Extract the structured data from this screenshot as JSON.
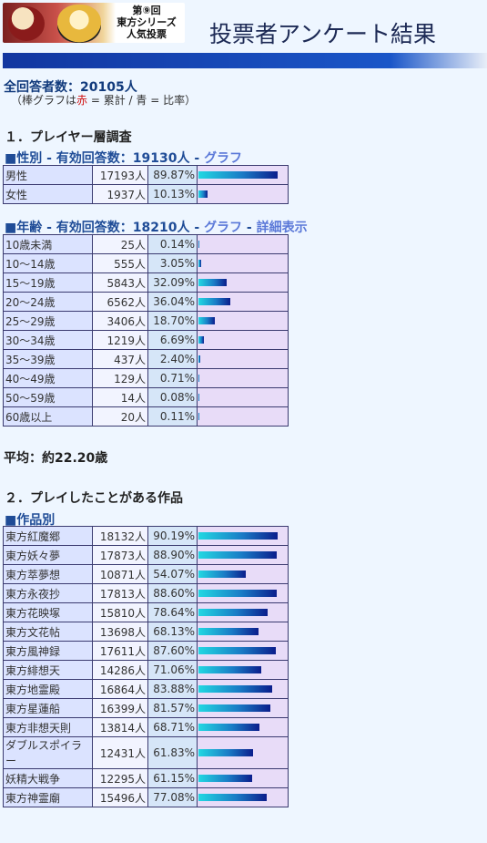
{
  "header": {
    "logo_text": [
      "第⑨回",
      "東方シリーズ",
      "人気投票"
    ],
    "title": "投票者アンケート結果"
  },
  "summary": {
    "total": "全回答者数：20105人",
    "legend_pre": "（棒グラフは",
    "legend_red": "赤",
    "legend_post": " = 累計 / 青 = 比率）"
  },
  "section1": {
    "title": "１．プレイヤー層調査",
    "gender": {
      "title": "■性別 - 有効回答数：19130人 - ",
      "graph_link": "グラフ",
      "rows": [
        {
          "label": "男性",
          "count": "17193人",
          "pct": "89.87%",
          "ratio": 0.8987
        },
        {
          "label": "女性",
          "count": "1937人",
          "pct": "10.13%",
          "ratio": 0.1013
        }
      ]
    },
    "age": {
      "title": "■年齢 - 有効回答数：18210人 - ",
      "graph_link": "グラフ",
      "sep": " - ",
      "detail_link": "詳細表示",
      "rows": [
        {
          "label": "10歳未満",
          "count": "25人",
          "pct": "0.14%",
          "ratio": 0.0014
        },
        {
          "label": "10～14歳",
          "count": "555人",
          "pct": "3.05%",
          "ratio": 0.0305
        },
        {
          "label": "15～19歳",
          "count": "5843人",
          "pct": "32.09%",
          "ratio": 0.3209
        },
        {
          "label": "20～24歳",
          "count": "6562人",
          "pct": "36.04%",
          "ratio": 0.3604
        },
        {
          "label": "25～29歳",
          "count": "3406人",
          "pct": "18.70%",
          "ratio": 0.187
        },
        {
          "label": "30～34歳",
          "count": "1219人",
          "pct": "6.69%",
          "ratio": 0.0669
        },
        {
          "label": "35～39歳",
          "count": "437人",
          "pct": "2.40%",
          "ratio": 0.024
        },
        {
          "label": "40～49歳",
          "count": "129人",
          "pct": "0.71%",
          "ratio": 0.0071
        },
        {
          "label": "50～59歳",
          "count": "14人",
          "pct": "0.08%",
          "ratio": 0.0008
        },
        {
          "label": "60歳以上",
          "count": "20人",
          "pct": "0.11%",
          "ratio": 0.0011
        }
      ],
      "average": "平均：約22.20歳"
    }
  },
  "section2": {
    "title": "２．プレイしたことがある作品",
    "works": {
      "title": "■作品別",
      "rows": [
        {
          "label": "東方紅魔郷",
          "count": "18132人",
          "pct": "90.19%",
          "ratio": 0.9019
        },
        {
          "label": "東方妖々夢",
          "count": "17873人",
          "pct": "88.90%",
          "ratio": 0.889
        },
        {
          "label": "東方萃夢想",
          "count": "10871人",
          "pct": "54.07%",
          "ratio": 0.5407
        },
        {
          "label": "東方永夜抄",
          "count": "17813人",
          "pct": "88.60%",
          "ratio": 0.886
        },
        {
          "label": "東方花映塚",
          "count": "15810人",
          "pct": "78.64%",
          "ratio": 0.7864
        },
        {
          "label": "東方文花帖",
          "count": "13698人",
          "pct": "68.13%",
          "ratio": 0.6813
        },
        {
          "label": "東方風神録",
          "count": "17611人",
          "pct": "87.60%",
          "ratio": 0.876
        },
        {
          "label": "東方緋想天",
          "count": "14286人",
          "pct": "71.06%",
          "ratio": 0.7106
        },
        {
          "label": "東方地霊殿",
          "count": "16864人",
          "pct": "83.88%",
          "ratio": 0.8388
        },
        {
          "label": "東方星蓮船",
          "count": "16399人",
          "pct": "81.57%",
          "ratio": 0.8157
        },
        {
          "label": "東方非想天則",
          "count": "13814人",
          "pct": "68.71%",
          "ratio": 0.6871
        },
        {
          "label": "ダブルスポイラー",
          "count": "12431人",
          "pct": "61.83%",
          "ratio": 0.6183
        },
        {
          "label": "妖精大戦争",
          "count": "12295人",
          "pct": "61.15%",
          "ratio": 0.6115
        },
        {
          "label": "東方神霊廟",
          "count": "15496人",
          "pct": "77.08%",
          "ratio": 0.7708
        }
      ]
    }
  }
}
